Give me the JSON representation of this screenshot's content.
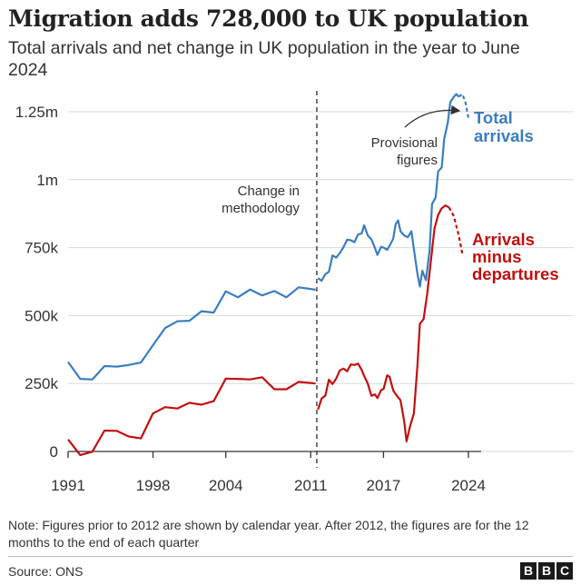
{
  "header": {
    "title": "Migration adds 728,000 to UK population",
    "subtitle": "Total arrivals and net change in UK population in the year to June 2024"
  },
  "footer": {
    "note": "Note: Figures prior to 2012 are shown by calendar year. After 2012, the figures are for the 12 months to the end of each quarter",
    "source": "Source: ONS",
    "logo_letters": [
      "B",
      "B",
      "C"
    ]
  },
  "colors": {
    "arrivals": "#3a7dbf",
    "net": "#c10f0f",
    "grid": "#d9d9d9",
    "axis": "#333333"
  },
  "chart_data": {
    "type": "line",
    "ylim": [
      0,
      1320000
    ],
    "xlim": [
      1991,
      2024.6
    ],
    "yticks": [
      {
        "value": 0,
        "label": "0"
      },
      {
        "value": 250000,
        "label": "250k"
      },
      {
        "value": 500000,
        "label": "500k"
      },
      {
        "value": 750000,
        "label": "750k"
      },
      {
        "value": 1000000,
        "label": "1m"
      },
      {
        "value": 1250000,
        "label": "1.25m"
      }
    ],
    "xticks": [
      {
        "value": 1991,
        "label": "1991"
      },
      {
        "value": 1998,
        "label": "1998"
      },
      {
        "value": 2004,
        "label": "2004"
      },
      {
        "value": 2011,
        "label": "2011"
      },
      {
        "value": 2017,
        "label": "2017"
      },
      {
        "value": 2024,
        "label": "2024"
      }
    ],
    "method_change": {
      "x": 2011.5,
      "label_lines": [
        "Change in",
        "methodology"
      ]
    },
    "provisional": {
      "label_lines": [
        "Provisional",
        "figures"
      ]
    },
    "series": [
      {
        "name": "Total arrivals",
        "name_lines": [
          "Total",
          "arrivals"
        ],
        "color": "#3a7dbf",
        "annual": [
          [
            1991,
            329000
          ],
          [
            1992,
            267000
          ],
          [
            1993,
            265000
          ],
          [
            1994,
            314000
          ],
          [
            1995,
            312000
          ],
          [
            1996,
            318000
          ],
          [
            1997,
            327000
          ],
          [
            1998,
            391000
          ],
          [
            1999,
            454000
          ],
          [
            2000,
            479000
          ],
          [
            2001,
            481000
          ],
          [
            2002,
            516000
          ],
          [
            2003,
            511000
          ],
          [
            2004,
            589000
          ],
          [
            2005,
            567000
          ],
          [
            2006,
            596000
          ],
          [
            2007,
            574000
          ],
          [
            2008,
            590000
          ],
          [
            2009,
            567000
          ],
          [
            2010,
            604000
          ],
          [
            2011,
            598000
          ],
          [
            2011.4,
            595000
          ]
        ],
        "quarterly": [
          [
            2011.6,
            638000
          ],
          [
            2011.9,
            628000
          ],
          [
            2012.2,
            652000
          ],
          [
            2012.5,
            661000
          ],
          [
            2012.8,
            721000
          ],
          [
            2013.1,
            713000
          ],
          [
            2013.4,
            730000
          ],
          [
            2013.7,
            752000
          ],
          [
            2014.0,
            779000
          ],
          [
            2014.3,
            777000
          ],
          [
            2014.6,
            770000
          ],
          [
            2014.9,
            798000
          ],
          [
            2015.2,
            802000
          ],
          [
            2015.4,
            832000
          ],
          [
            2015.7,
            795000
          ],
          [
            2016.0,
            780000
          ],
          [
            2016.3,
            748000
          ],
          [
            2016.5,
            723000
          ],
          [
            2016.8,
            753000
          ],
          [
            2017.0,
            750000
          ],
          [
            2017.3,
            742000
          ],
          [
            2017.5,
            757000
          ],
          [
            2017.8,
            782000
          ],
          [
            2018.0,
            836000
          ],
          [
            2018.2,
            850000
          ],
          [
            2018.4,
            810000
          ],
          [
            2018.7,
            795000
          ],
          [
            2019.0,
            788000
          ],
          [
            2019.3,
            810000
          ],
          [
            2019.5,
            745000
          ],
          [
            2019.8,
            652000
          ],
          [
            2020.0,
            607000
          ],
          [
            2020.2,
            665000
          ],
          [
            2020.5,
            630000
          ],
          [
            2020.8,
            740000
          ],
          [
            2021.0,
            910000
          ],
          [
            2021.3,
            935000
          ],
          [
            2021.5,
            1030000
          ],
          [
            2021.8,
            1045000
          ],
          [
            2022.0,
            1150000
          ],
          [
            2022.3,
            1210000
          ],
          [
            2022.5,
            1285000
          ],
          [
            2022.8,
            1305000
          ],
          [
            2023.0,
            1315000
          ],
          [
            2023.2,
            1305000
          ]
        ],
        "provisional_points": [
          [
            2023.2,
            1305000
          ],
          [
            2023.5,
            1315000
          ],
          [
            2023.75,
            1285000
          ],
          [
            2024.0,
            1225000
          ]
        ]
      },
      {
        "name": "Arrivals minus departures",
        "name_lines": [
          "Arrivals",
          "minus",
          "departures"
        ],
        "color": "#c10f0f",
        "annual": [
          [
            1991,
            44000
          ],
          [
            1992,
            -13000
          ],
          [
            1993,
            -1000
          ],
          [
            1994,
            77000
          ],
          [
            1995,
            76000
          ],
          [
            1996,
            55000
          ],
          [
            1997,
            48000
          ],
          [
            1998,
            140000
          ],
          [
            1999,
            163000
          ],
          [
            2000,
            158000
          ],
          [
            2001,
            179000
          ],
          [
            2002,
            172000
          ],
          [
            2003,
            185000
          ],
          [
            2004,
            268000
          ],
          [
            2005,
            267000
          ],
          [
            2006,
            265000
          ],
          [
            2007,
            273000
          ],
          [
            2008,
            229000
          ],
          [
            2009,
            229000
          ],
          [
            2010,
            256000
          ],
          [
            2011,
            252000
          ],
          [
            2011.4,
            250000
          ]
        ],
        "quarterly": [
          [
            2011.6,
            154000
          ],
          [
            2011.9,
            195000
          ],
          [
            2012.2,
            205000
          ],
          [
            2012.5,
            264000
          ],
          [
            2012.8,
            248000
          ],
          [
            2013.1,
            268000
          ],
          [
            2013.4,
            298000
          ],
          [
            2013.7,
            305000
          ],
          [
            2014.0,
            295000
          ],
          [
            2014.3,
            320000
          ],
          [
            2014.6,
            318000
          ],
          [
            2014.9,
            323000
          ],
          [
            2015.2,
            300000
          ],
          [
            2015.4,
            278000
          ],
          [
            2015.7,
            250000
          ],
          [
            2016.0,
            205000
          ],
          [
            2016.3,
            210000
          ],
          [
            2016.5,
            196000
          ],
          [
            2016.8,
            226000
          ],
          [
            2017.0,
            230000
          ],
          [
            2017.3,
            280000
          ],
          [
            2017.5,
            275000
          ],
          [
            2017.8,
            225000
          ],
          [
            2018.1,
            205000
          ],
          [
            2018.4,
            188000
          ],
          [
            2018.7,
            112000
          ],
          [
            2018.9,
            37000
          ],
          [
            2019.2,
            95000
          ],
          [
            2019.5,
            140000
          ],
          [
            2019.8,
            320000
          ],
          [
            2020.0,
            470000
          ],
          [
            2020.3,
            487000
          ],
          [
            2020.6,
            580000
          ],
          [
            2020.9,
            700000
          ],
          [
            2021.2,
            820000
          ],
          [
            2021.5,
            870000
          ],
          [
            2021.8,
            895000
          ],
          [
            2022.1,
            905000
          ],
          [
            2022.4,
            898000
          ]
        ],
        "provisional_points": [
          [
            2022.4,
            898000
          ],
          [
            2022.8,
            865000
          ],
          [
            2023.2,
            795000
          ],
          [
            2023.5,
            728000
          ]
        ]
      }
    ]
  }
}
